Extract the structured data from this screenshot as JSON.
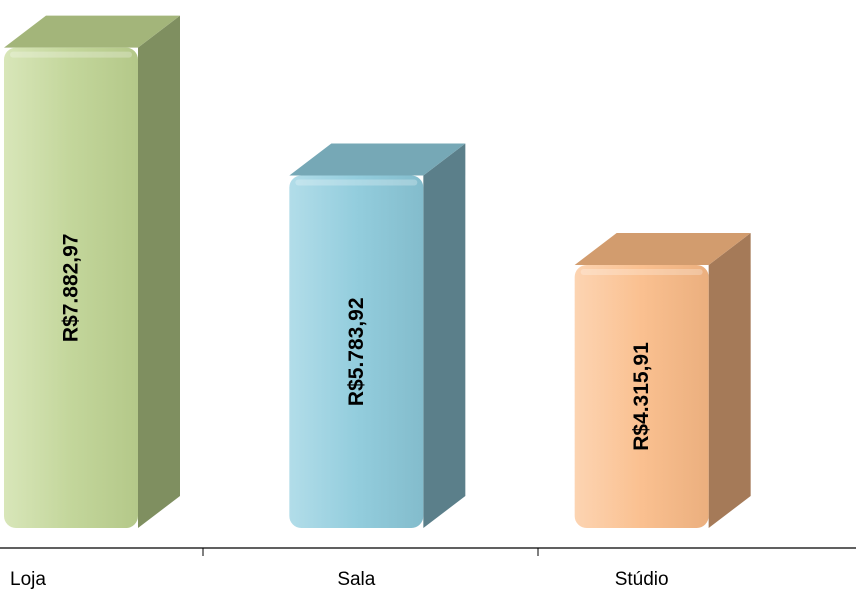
{
  "chart_data": {
    "type": "bar",
    "categories": [
      "Loja",
      "Sala",
      "Stúdio"
    ],
    "values": [
      7882.97,
      5783.92,
      4315.91
    ],
    "value_labels": [
      "R$7.882,97",
      "R$5.783,92",
      "R$4.315,91"
    ],
    "ylim": [
      0,
      8500
    ],
    "grid": false,
    "legend": "none",
    "colors": [
      {
        "front": "#c3d69b",
        "side": "#7f8f60",
        "top": "#a3b57a"
      },
      {
        "front": "#93cddd",
        "side": "#5b7f8a",
        "top": "#76a8b6"
      },
      {
        "front": "#fac090",
        "side": "#a57a58",
        "top": "#d29c6e"
      }
    ]
  }
}
